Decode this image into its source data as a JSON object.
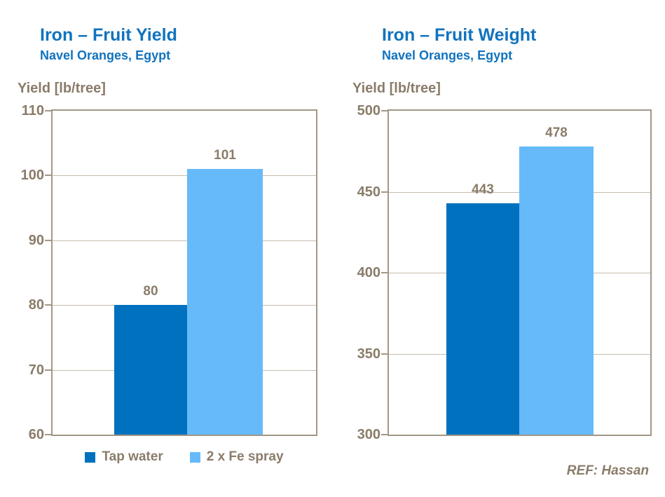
{
  "colors": {
    "title_blue": "#1173BE",
    "axis_text": "#8A7C6A",
    "grid": "#C6BCAE",
    "border": "#A39786",
    "bar_dark": "#0071BE",
    "bar_light": "#66BAFA",
    "page_bg": "#FFFFFF"
  },
  "footer": {
    "ref_label": "REF: Hassan"
  },
  "chart_data": [
    {
      "type": "bar",
      "title": "Iron – Fruit Yield",
      "subtitle": "Navel Oranges, Egypt",
      "ylabel": "Yield [lb/tree]",
      "categories": [
        "Tap water",
        "2 x Fe spray"
      ],
      "values": [
        80,
        101
      ],
      "data_labels": [
        "80",
        "101"
      ],
      "ylim": [
        60,
        110
      ],
      "yticks": [
        110,
        100,
        90,
        80,
        70,
        60
      ],
      "grid": true,
      "legend_position": "bottom",
      "bar_colors": [
        "#0071BE",
        "#66BAFA"
      ]
    },
    {
      "type": "bar",
      "title": "Iron – Fruit Weight",
      "subtitle": "Navel Oranges, Egypt",
      "ylabel": "Yield [lb/tree]",
      "categories": [
        "Tap water",
        "2 x Fe spray"
      ],
      "values": [
        443,
        478
      ],
      "data_labels": [
        "443",
        "478"
      ],
      "ylim": [
        300,
        500
      ],
      "yticks": [
        500,
        450,
        400,
        350,
        300
      ],
      "grid": true,
      "legend_position": "none",
      "bar_colors": [
        "#0071BE",
        "#66BAFA"
      ]
    }
  ]
}
